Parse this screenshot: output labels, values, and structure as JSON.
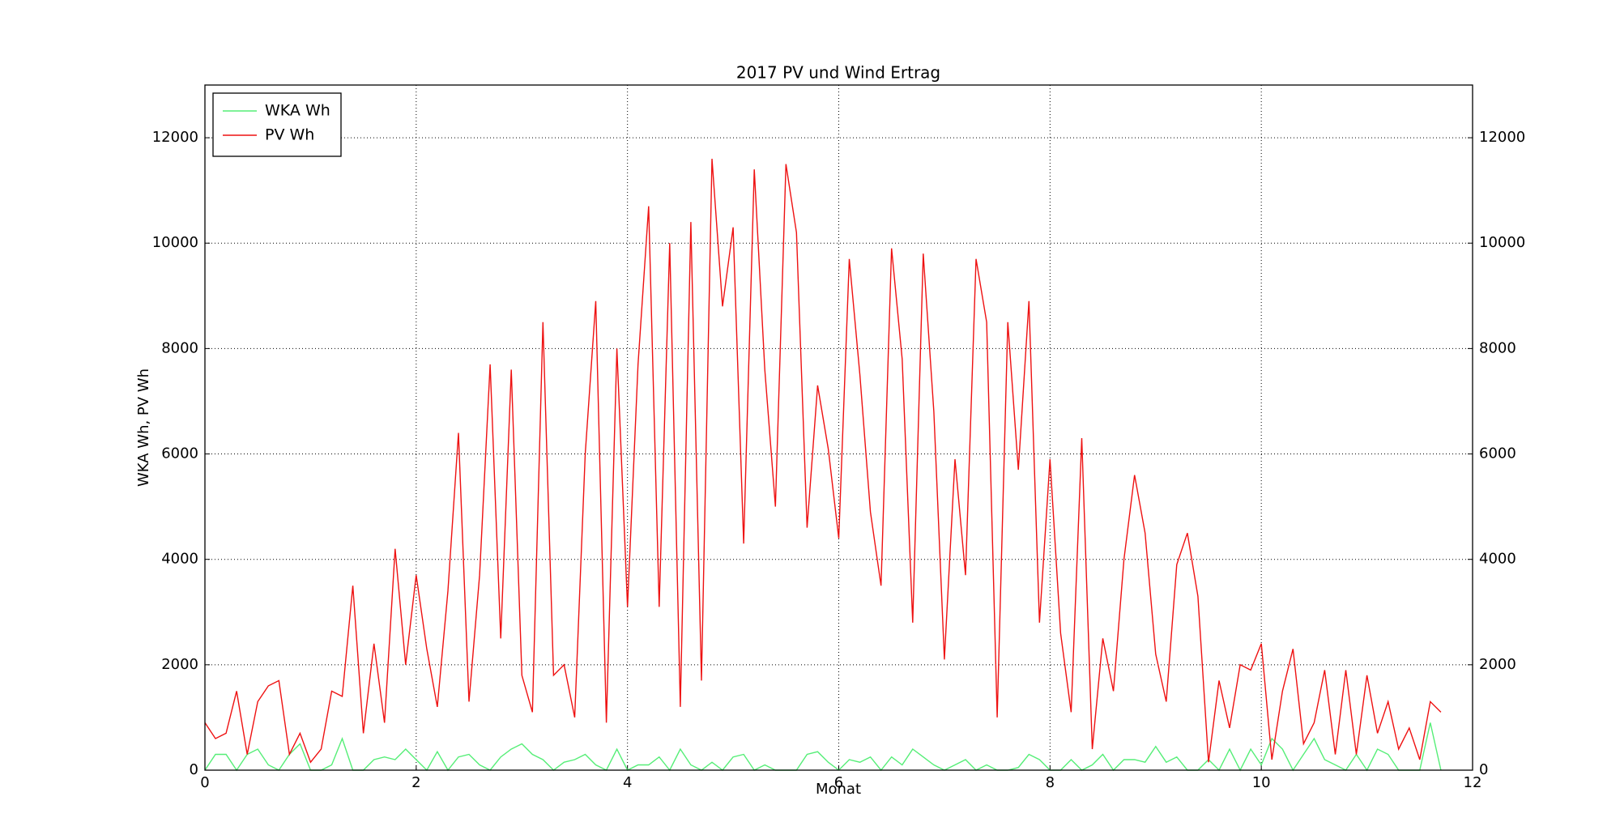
{
  "chart_data": {
    "type": "line",
    "title": "2017 PV und Wind Ertrag",
    "xlabel": "Monat",
    "ylabel": "WKA Wh, PV Wh",
    "x": [
      0,
      0.1,
      0.2,
      0.3,
      0.4,
      0.5,
      0.6,
      0.7,
      0.8,
      0.9,
      1,
      1.1,
      1.2,
      1.3,
      1.4,
      1.5,
      1.6,
      1.7,
      1.8,
      1.9,
      2,
      2.1,
      2.2,
      2.3,
      2.4,
      2.5,
      2.6,
      2.7,
      2.8,
      2.9,
      3,
      3.1,
      3.2,
      3.3,
      3.4,
      3.5,
      3.6,
      3.7,
      3.8,
      3.9,
      4,
      4.1,
      4.2,
      4.3,
      4.4,
      4.5,
      4.6,
      4.7,
      4.8,
      4.9,
      5,
      5.1,
      5.2,
      5.3,
      5.4,
      5.5,
      5.6,
      5.7,
      5.8,
      5.9,
      6,
      6.1,
      6.2,
      6.3,
      6.4,
      6.5,
      6.6,
      6.7,
      6.8,
      6.9,
      7,
      7.1,
      7.2,
      7.3,
      7.4,
      7.5,
      7.6,
      7.7,
      7.8,
      7.9,
      8,
      8.1,
      8.2,
      8.3,
      8.4,
      8.5,
      8.6,
      8.7,
      8.8,
      8.9,
      9,
      9.1,
      9.2,
      9.3,
      9.4,
      9.5,
      9.6,
      9.7,
      9.8,
      9.9,
      10,
      10.1,
      10.2,
      10.3,
      10.4,
      10.5,
      10.6,
      10.7,
      10.8,
      10.9,
      11,
      11.1,
      11.2,
      11.3,
      11.4,
      11.5,
      11.6,
      11.7
    ],
    "series": [
      {
        "name": "WKA Wh",
        "color": "#55ee77",
        "values": [
          0,
          300,
          300,
          0,
          300,
          400,
          100,
          0,
          300,
          500,
          0,
          0,
          100,
          600,
          0,
          0,
          200,
          250,
          200,
          400,
          200,
          0,
          350,
          0,
          250,
          300,
          100,
          0,
          250,
          400,
          500,
          300,
          200,
          0,
          150,
          200,
          300,
          100,
          0,
          400,
          0,
          100,
          100,
          250,
          0,
          400,
          100,
          0,
          150,
          0,
          250,
          300,
          0,
          100,
          0,
          0,
          0,
          300,
          350,
          150,
          0,
          200,
          150,
          250,
          0,
          250,
          100,
          400,
          250,
          100,
          0,
          100,
          200,
          0,
          100,
          0,
          0,
          50,
          300,
          200,
          0,
          0,
          200,
          0,
          100,
          300,
          0,
          200,
          200,
          150,
          450,
          150,
          250,
          0,
          0,
          200,
          0,
          400,
          0,
          400,
          100,
          600,
          400,
          0,
          300,
          600,
          200,
          100,
          0,
          300,
          0,
          400,
          300,
          0,
          0,
          0,
          900,
          0
        ]
      },
      {
        "name": "PV Wh",
        "color": "#ee1111",
        "values": [
          900,
          600,
          700,
          1500,
          300,
          1300,
          1600,
          1700,
          300,
          700,
          150,
          400,
          1500,
          1400,
          3500,
          700,
          2400,
          900,
          4200,
          2000,
          3700,
          2300,
          1200,
          3400,
          6400,
          1300,
          3700,
          7700,
          2500,
          7600,
          1800,
          1100,
          8500,
          1800,
          2000,
          1000,
          6000,
          8900,
          900,
          8000,
          3100,
          7700,
          10700,
          3100,
          10000,
          1200,
          10400,
          1700,
          11600,
          8800,
          10300,
          4300,
          11400,
          7600,
          5000,
          11500,
          10200,
          4600,
          7300,
          6100,
          4400,
          9700,
          7500,
          4900,
          3500,
          9900,
          7800,
          2800,
          9800,
          6800,
          2100,
          5900,
          3700,
          9700,
          8500,
          1000,
          8500,
          5700,
          8900,
          2800,
          5900,
          2600,
          1100,
          6300,
          400,
          2500,
          1500,
          4000,
          5600,
          4500,
          2200,
          1300,
          3900,
          4500,
          3300,
          150,
          1700,
          800,
          2000,
          1900,
          2400,
          200,
          1500,
          2300,
          500,
          900,
          1900,
          300,
          1900,
          300,
          1800,
          700,
          1300,
          400,
          800,
          200,
          1300,
          1100
        ]
      }
    ],
    "xlim": [
      0,
      12
    ],
    "xticks": [
      0,
      2,
      4,
      6,
      8,
      10,
      12
    ],
    "ylim": [
      0,
      13000
    ],
    "yticks": [
      0,
      2000,
      4000,
      6000,
      8000,
      10000,
      12000
    ],
    "grid": true,
    "legend": "upper left"
  }
}
